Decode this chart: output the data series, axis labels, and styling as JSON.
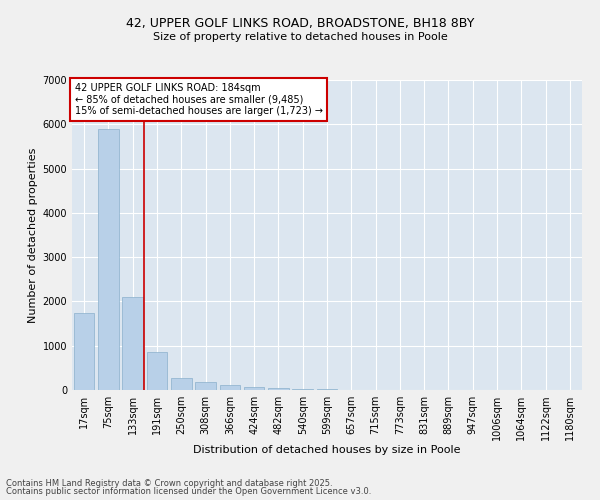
{
  "title1": "42, UPPER GOLF LINKS ROAD, BROADSTONE, BH18 8BY",
  "title2": "Size of property relative to detached houses in Poole",
  "xlabel": "Distribution of detached houses by size in Poole",
  "ylabel": "Number of detached properties",
  "categories": [
    "17sqm",
    "75sqm",
    "133sqm",
    "191sqm",
    "250sqm",
    "308sqm",
    "366sqm",
    "424sqm",
    "482sqm",
    "540sqm",
    "599sqm",
    "657sqm",
    "715sqm",
    "773sqm",
    "831sqm",
    "889sqm",
    "947sqm",
    "1006sqm",
    "1064sqm",
    "1122sqm",
    "1180sqm"
  ],
  "values": [
    1750,
    5900,
    2100,
    850,
    280,
    175,
    120,
    75,
    45,
    25,
    15,
    8,
    5,
    3,
    2,
    2,
    1,
    1,
    1,
    1,
    1
  ],
  "bar_color": "#b8d0e8",
  "bar_edge_color": "#8ab0cc",
  "vline_color": "#cc0000",
  "vline_x": 2.45,
  "annotation_text": "42 UPPER GOLF LINKS ROAD: 184sqm\n← 85% of detached houses are smaller (9,485)\n15% of semi-detached houses are larger (1,723) →",
  "annotation_box_facecolor": "#ffffff",
  "annotation_box_edgecolor": "#cc0000",
  "ylim": [
    0,
    7000
  ],
  "yticks": [
    0,
    1000,
    2000,
    3000,
    4000,
    5000,
    6000,
    7000
  ],
  "ax_facecolor": "#dce6f0",
  "fig_facecolor": "#f0f0f0",
  "grid_color": "#ffffff",
  "title1_fontsize": 9,
  "title2_fontsize": 8,
  "xlabel_fontsize": 8,
  "ylabel_fontsize": 8,
  "tick_fontsize": 7,
  "annot_fontsize": 7,
  "footer1": "Contains HM Land Registry data © Crown copyright and database right 2025.",
  "footer2": "Contains public sector information licensed under the Open Government Licence v3.0.",
  "footer_fontsize": 6
}
